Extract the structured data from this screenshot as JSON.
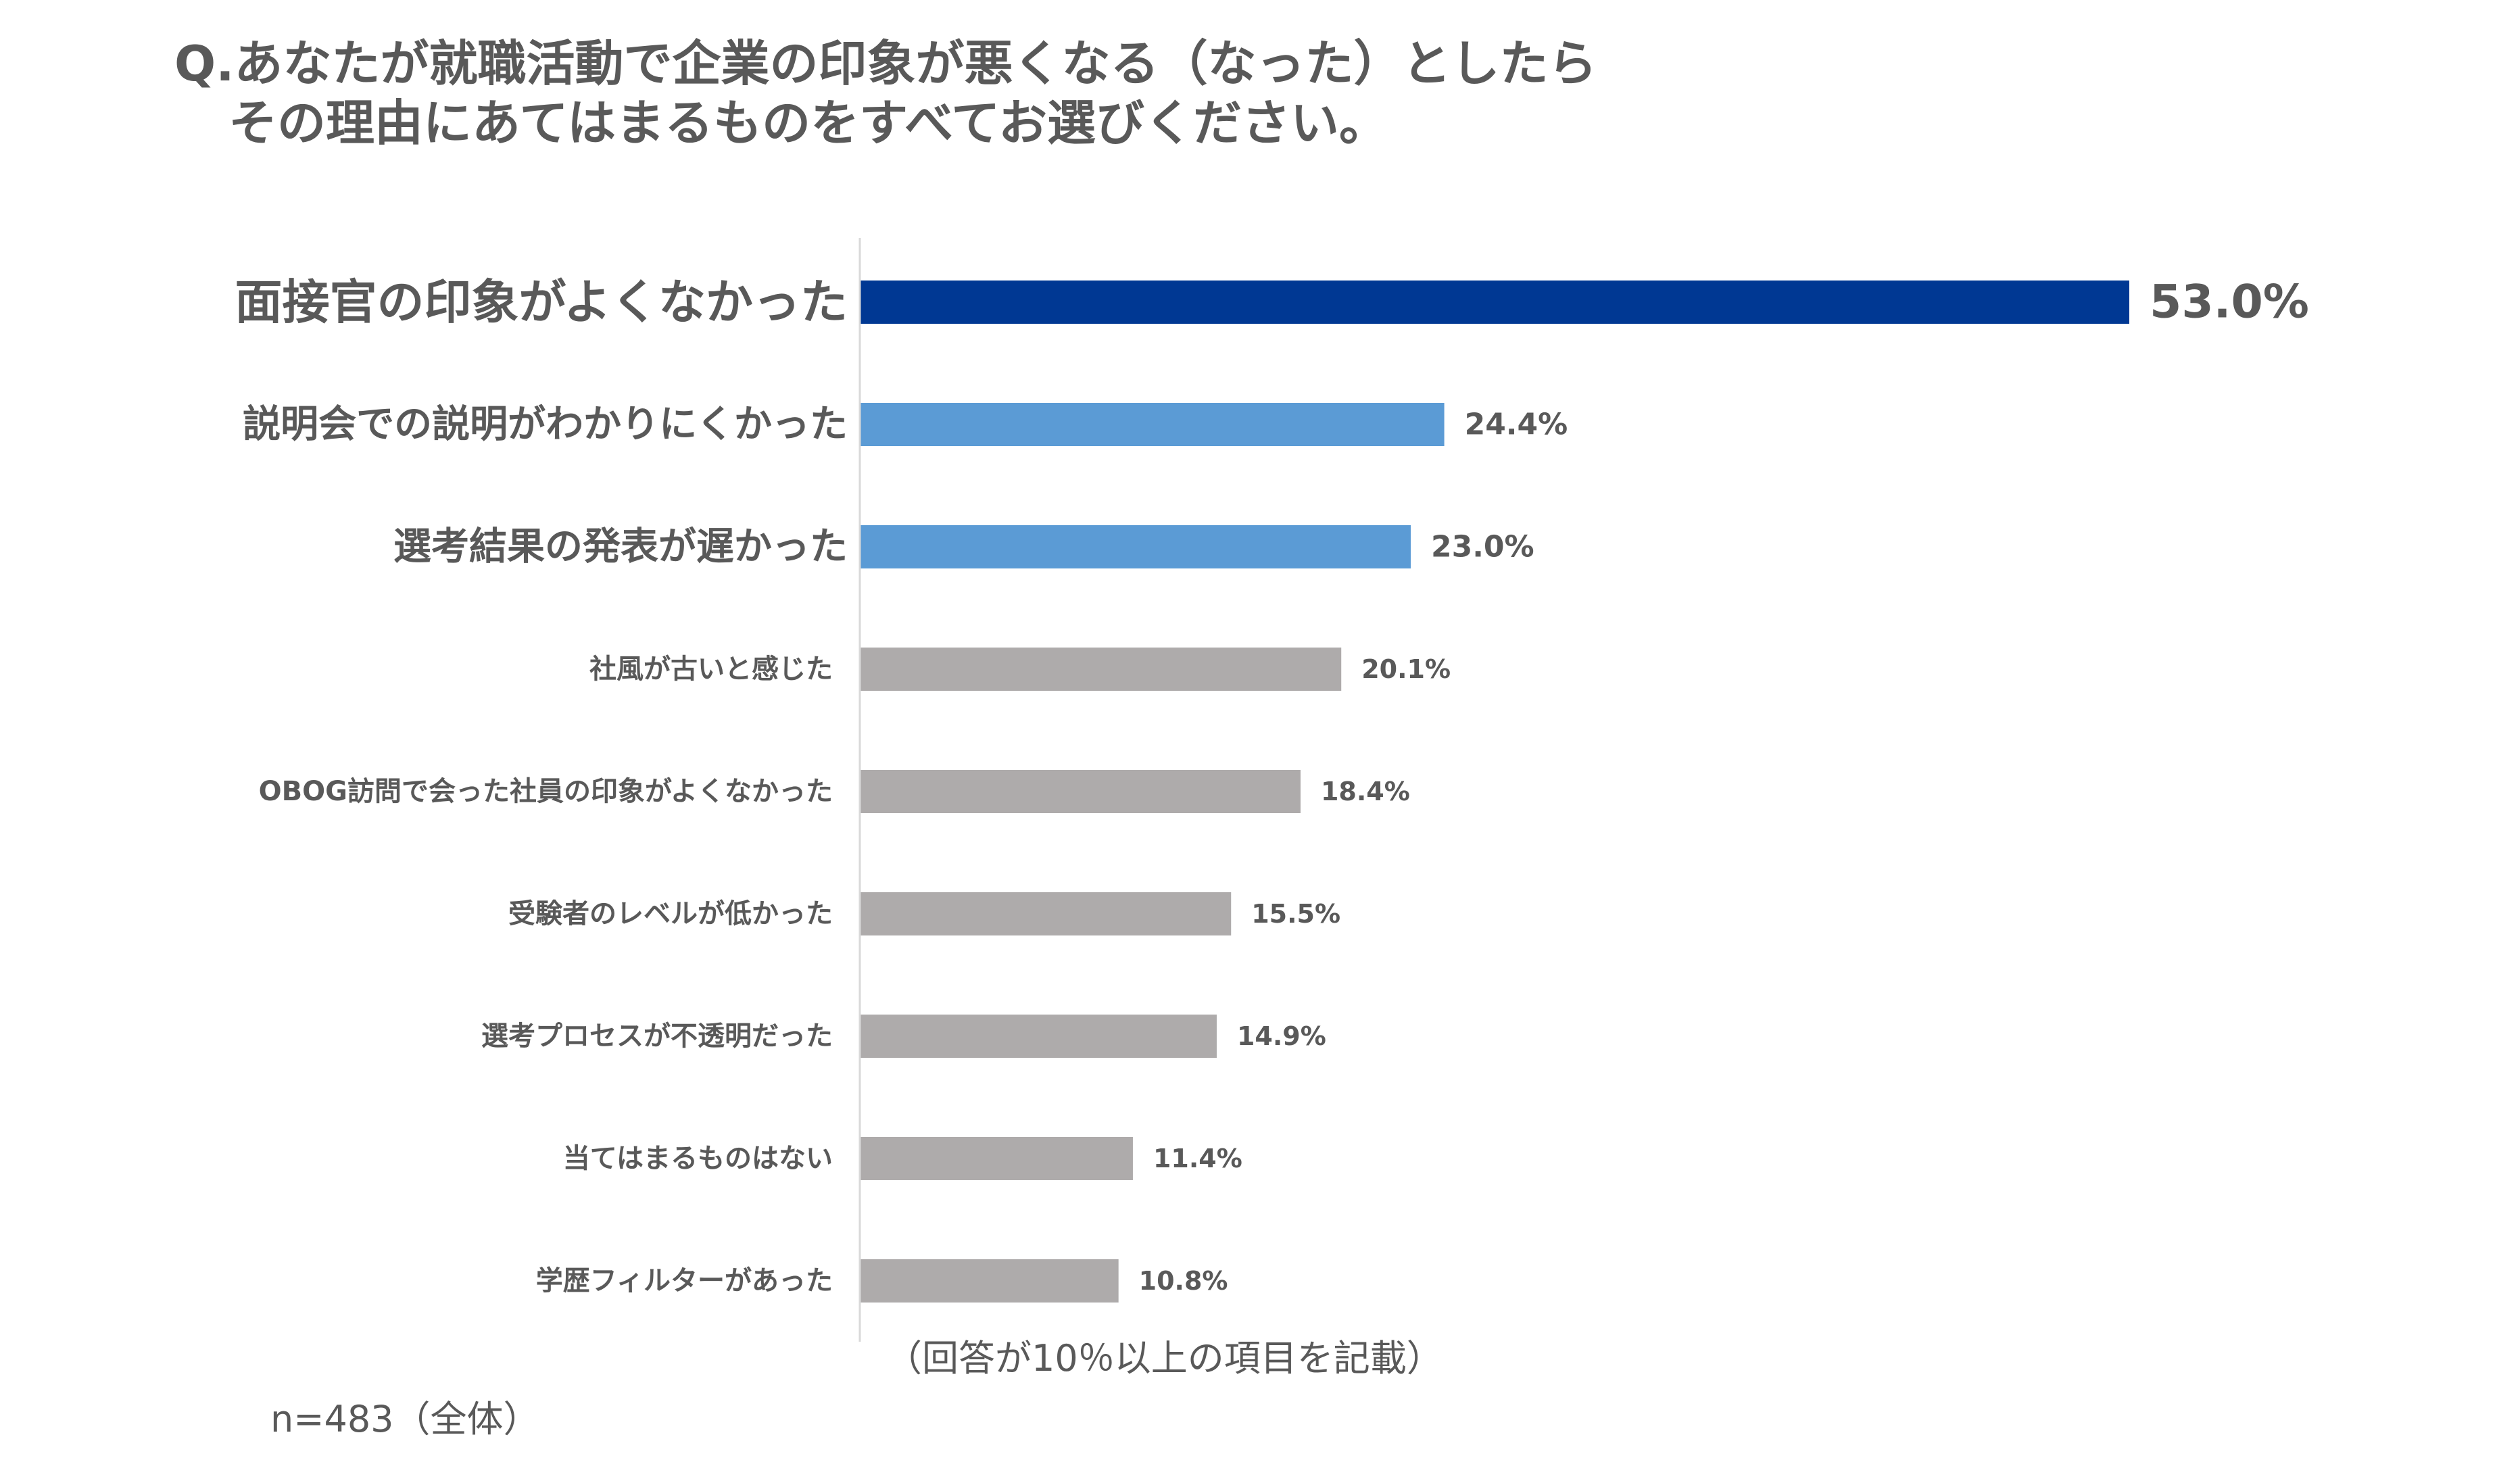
{
  "title_line1": "Q.あなたが就職活動で企業の印象が悪くなる（なった）としたら",
  "title_line2": "その理由にあてはまるものをすべてお選びください。",
  "note_criteria": "（回答が10％以上の項目を記載）",
  "note_sample": "n=483（全体）",
  "chart_data": {
    "type": "bar",
    "orientation": "horizontal",
    "categories": [
      "面接官の印象がよくなかった",
      "説明会での説明がわかりにくかった",
      "選考結果の発表が遅かった",
      "社風が古いと感じた",
      "OBOG訪問で会った社員の印象がよくなかった",
      "受験者のレベルが低かった",
      "選考プロセスが不透明だった",
      "当てはまるものはない",
      "学歴フィルターがあった"
    ],
    "values": [
      53.0,
      24.4,
      23.0,
      20.1,
      18.4,
      15.5,
      14.9,
      11.4,
      10.8
    ],
    "data_labels": [
      "53.0%",
      "24.4%",
      "23.0%",
      "20.1%",
      "18.4%",
      "15.5%",
      "14.9%",
      "11.4%",
      "10.8%"
    ],
    "unit": "%",
    "xlim": [
      0,
      60
    ],
    "grid": false,
    "legend": "none",
    "colors": [
      "#003893",
      "#5B9BD5",
      "#5B9BD5",
      "#AEABAB",
      "#AEABAB",
      "#AEABAB",
      "#AEABAB",
      "#AEABAB",
      "#AEABAB"
    ],
    "axis_color": "#D9D9D9"
  }
}
